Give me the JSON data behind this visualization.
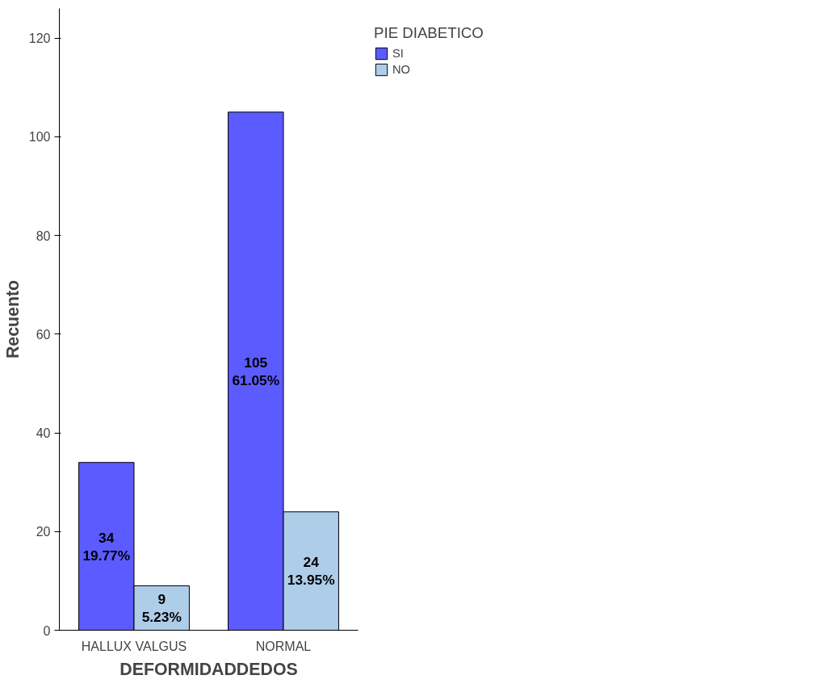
{
  "chart_data": {
    "type": "bar",
    "xlabel": "DEFORMIDADDEDOS",
    "ylabel": "Recuento",
    "legend_title": "PIE DIABETICO",
    "categories": [
      "HALLUX VALGUS",
      "NORMAL"
    ],
    "series": [
      {
        "name": "SI",
        "color": "#5b5bff",
        "values": [
          34,
          105
        ],
        "value_labels": [
          "34\n19.77%",
          "105\n61.05%"
        ]
      },
      {
        "name": "NO",
        "color": "#aecde9",
        "values": [
          9,
          24
        ],
        "value_labels": [
          "9\n5.23%",
          "24\n13.95%"
        ]
      }
    ],
    "ylim": [
      0,
      126
    ],
    "yticks": [
      0,
      20,
      40,
      60,
      80,
      100,
      120
    ],
    "grid": false,
    "legend": "right"
  }
}
